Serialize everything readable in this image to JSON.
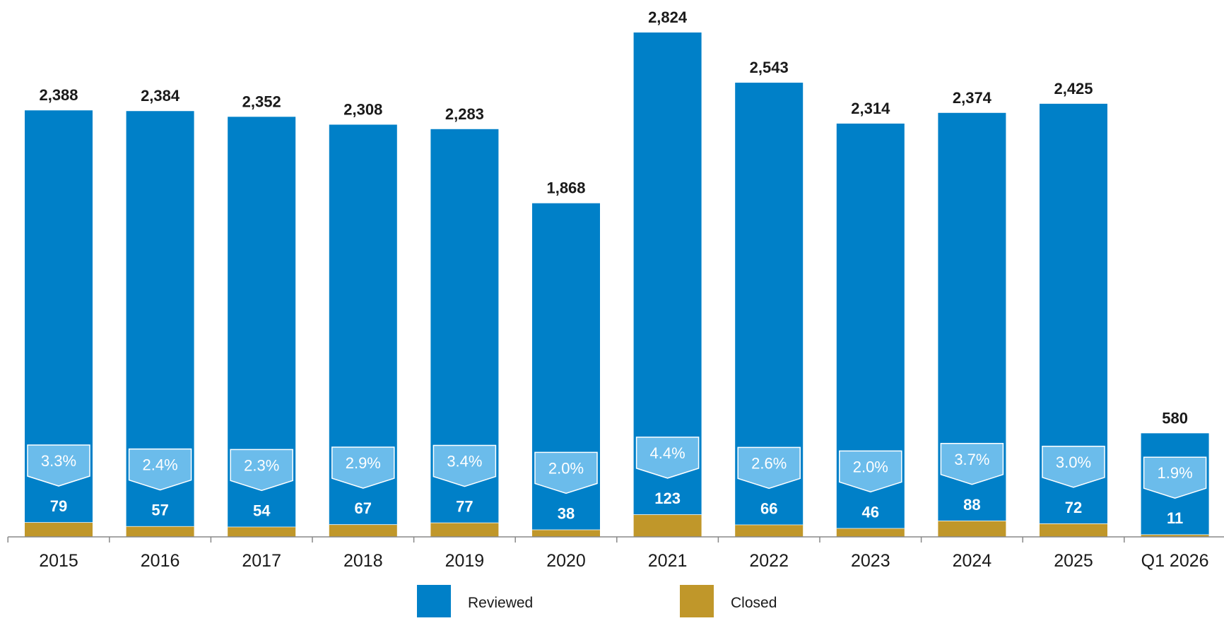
{
  "chart_data": {
    "type": "bar",
    "stacked": true,
    "categories": [
      "2015",
      "2016",
      "2017",
      "2018",
      "2019",
      "2020",
      "2021",
      "2022",
      "2023",
      "2024",
      "2025",
      "Q1 2026"
    ],
    "totals": [
      2388,
      2384,
      2352,
      2308,
      2283,
      1868,
      2824,
      2543,
      2314,
      2374,
      2425,
      580
    ],
    "total_labels": [
      "2,388",
      "2,384",
      "2,352",
      "2,308",
      "2,283",
      "1,868",
      "2,824",
      "2,543",
      "2,314",
      "2,374",
      "2,425",
      "580"
    ],
    "series": [
      {
        "name": "Reviewed",
        "color": "#0080c8"
      },
      {
        "name": "Closed",
        "color": "#c0972a",
        "values": [
          79,
          57,
          54,
          67,
          77,
          38,
          123,
          66,
          46,
          88,
          72,
          11
        ]
      }
    ],
    "percent_labels": [
      "3.3%",
      "2.4%",
      "2.3%",
      "2.9%",
      "3.4%",
      "2.0%",
      "4.4%",
      "2.6%",
      "2.0%",
      "3.7%",
      "3.0%",
      "1.9%"
    ],
    "ylim": [
      0,
      2900
    ],
    "grid": false,
    "legend": {
      "position": "bottom",
      "entries": [
        "Reviewed",
        "Closed"
      ]
    },
    "colors": {
      "reviewed": "#0080c8",
      "closed": "#c0972a",
      "callout": "#6bbceb",
      "axis": "#888888"
    }
  }
}
